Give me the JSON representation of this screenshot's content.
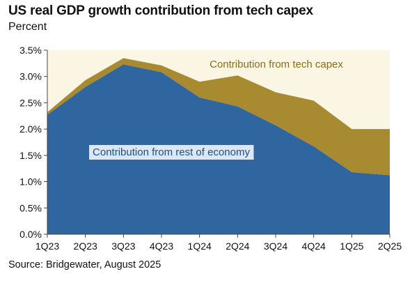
{
  "title": "US real GDP growth contribution from tech capex",
  "subtitle": "Percent",
  "source": "Source: Bridgewater, August 2025",
  "colors": {
    "rest_of_economy": "#2f66a0",
    "tech_capex": "#a88a30",
    "plot_background": "#fbf6e4",
    "rest_label_box": "#dbe7f2",
    "tech_label_box": "#fbf6e4"
  },
  "chart_data": {
    "type": "area",
    "stacked": true,
    "x": [
      "1Q23",
      "2Q23",
      "3Q23",
      "4Q23",
      "1Q24",
      "2Q24",
      "3Q24",
      "4Q24",
      "1Q25",
      "2Q25"
    ],
    "series": [
      {
        "name": "Contribution from rest of economy",
        "values": [
          2.27,
          2.8,
          3.23,
          3.08,
          2.6,
          2.43,
          2.07,
          1.67,
          1.18,
          1.12
        ]
      },
      {
        "name": "Contribution from tech capex",
        "values": [
          0.05,
          0.13,
          0.12,
          0.13,
          0.3,
          0.59,
          0.63,
          0.87,
          0.82,
          0.88
        ]
      }
    ],
    "yticks": [
      "0.0%",
      "0.5%",
      "1.0%",
      "1.5%",
      "2.0%",
      "2.5%",
      "3.0%",
      "3.5%"
    ],
    "ylim": [
      0,
      3.5
    ],
    "grid": false
  }
}
